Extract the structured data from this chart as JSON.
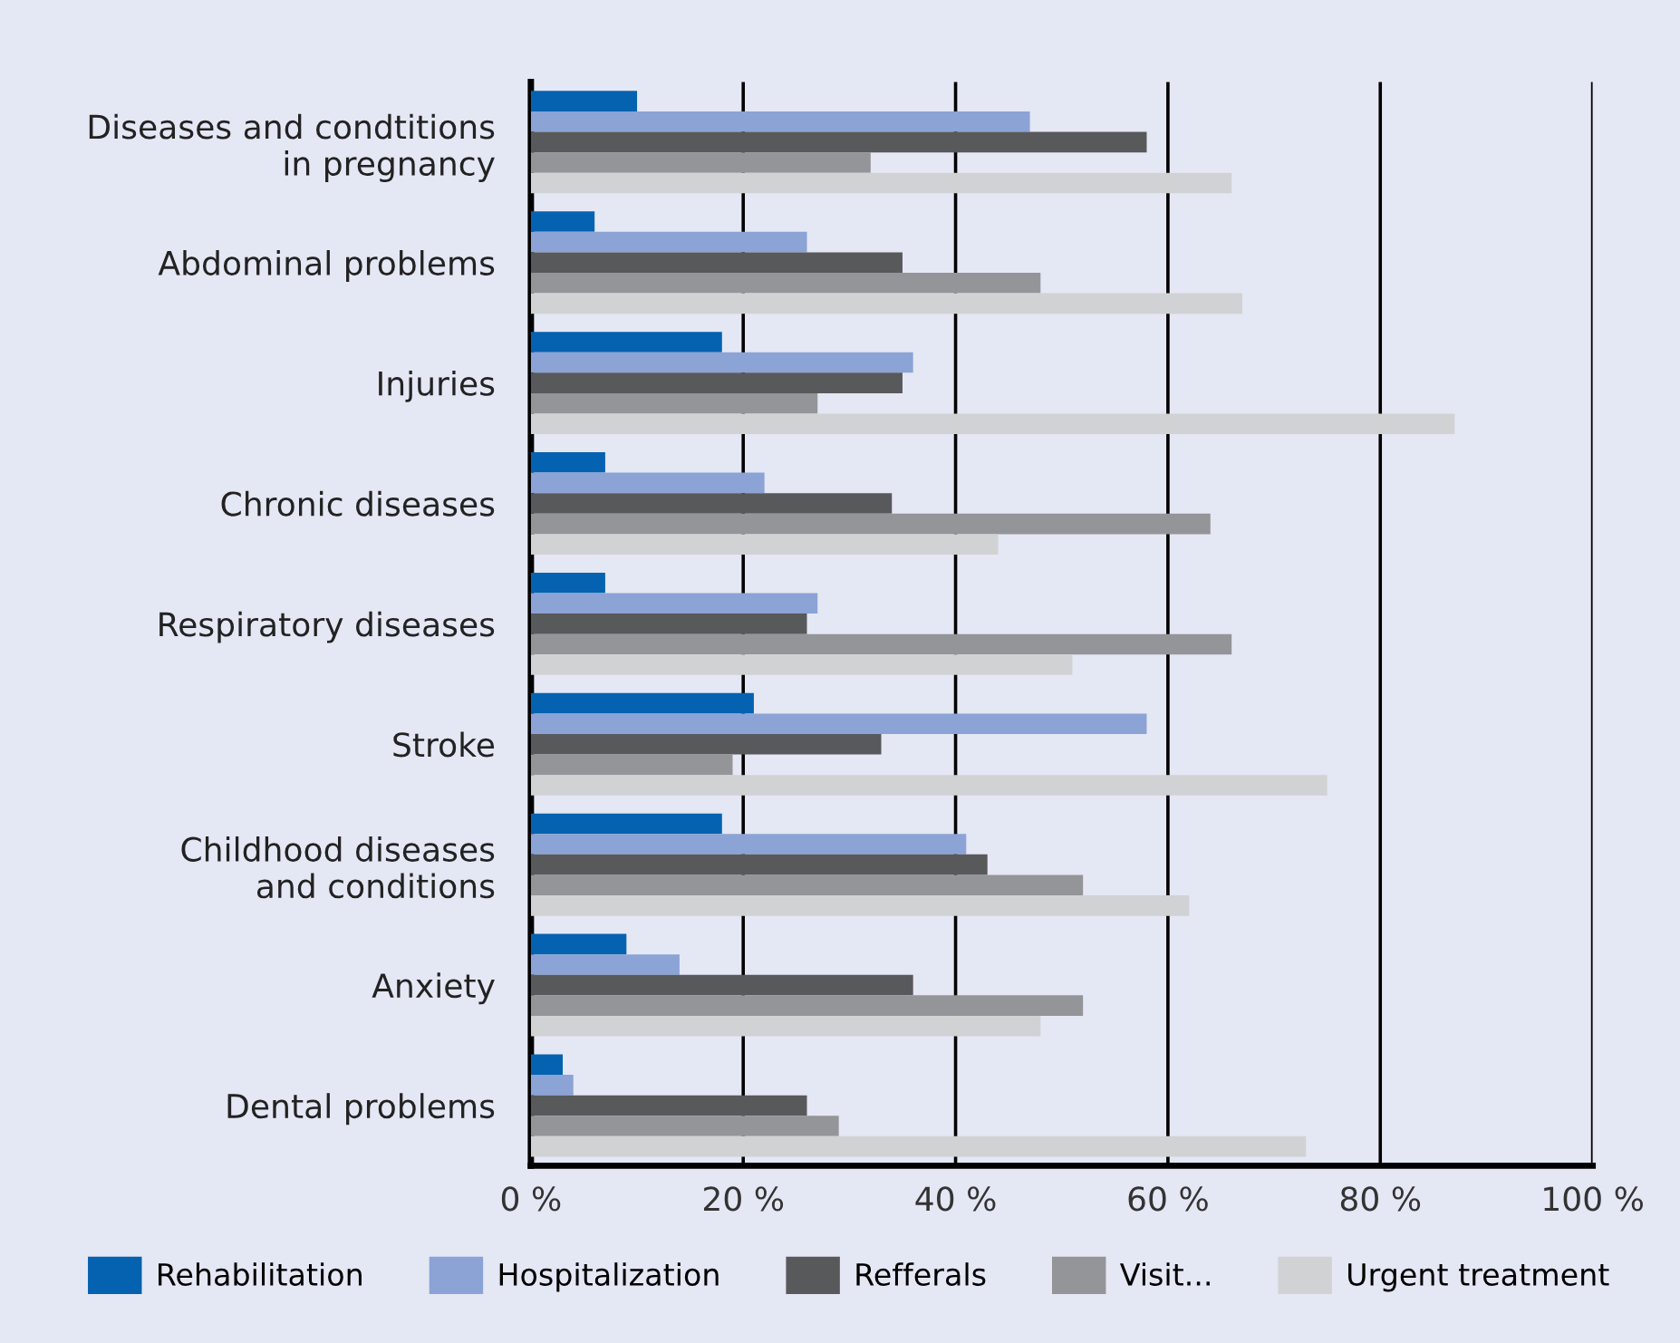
{
  "chart_data": {
    "type": "bar",
    "orientation": "horizontal",
    "categories": [
      "Diseases and condtitions\nin pregnancy",
      "Abdominal problems",
      "Injuries",
      "Chronic diseases",
      "Respiratory diseases",
      "Stroke",
      "Childhood diseases\nand conditions",
      "Anxiety",
      "Dental problems"
    ],
    "series": [
      {
        "name": "Rehabilitation",
        "color": "#0562b0",
        "values": [
          10,
          6,
          18,
          7,
          7,
          21,
          18,
          9,
          3
        ]
      },
      {
        "name": "Hospitalization",
        "color": "#8ba3d5",
        "values": [
          47,
          26,
          36,
          22,
          27,
          58,
          41,
          14,
          4
        ]
      },
      {
        "name": "Refferals",
        "color": "#58595b",
        "values": [
          58,
          35,
          35,
          34,
          26,
          33,
          43,
          36,
          26
        ]
      },
      {
        "name": "Visit...",
        "color": "#939598",
        "values": [
          32,
          48,
          27,
          64,
          66,
          19,
          52,
          52,
          29
        ]
      },
      {
        "name": "Urgent treatment",
        "color": "#d1d2d3",
        "values": [
          66,
          67,
          87,
          44,
          51,
          75,
          62,
          48,
          73
        ]
      }
    ],
    "xlim": [
      0,
      100
    ],
    "xticks": [
      {
        "value": 0,
        "label": "0 %"
      },
      {
        "value": 20,
        "label": "20 %"
      },
      {
        "value": 40,
        "label": "40 %"
      },
      {
        "value": 60,
        "label": "60 %"
      },
      {
        "value": 80,
        "label": "80 %"
      },
      {
        "value": 100,
        "label": "100 %"
      }
    ],
    "grid": "x",
    "legend": "bottom"
  }
}
